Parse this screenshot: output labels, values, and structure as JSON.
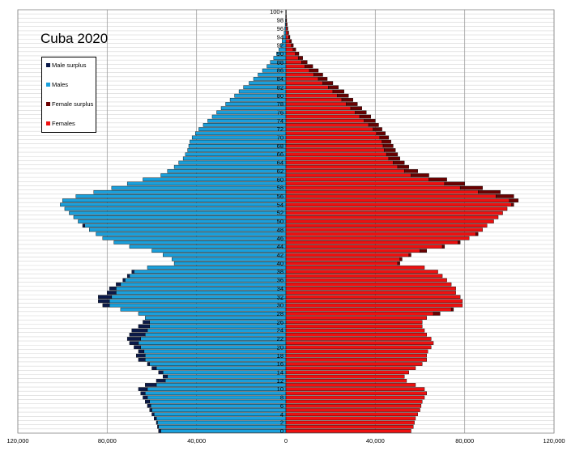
{
  "chart_data": {
    "type": "bar",
    "title": "Cuba 2020",
    "orientation": "horizontal",
    "layout": "population-pyramid",
    "xlim": [
      -120000,
      120000
    ],
    "x_ticks": [
      -120000,
      -80000,
      -40000,
      0,
      40000,
      80000,
      120000
    ],
    "x_tick_labels": [
      "120,000",
      "80,000",
      "40,000",
      "0",
      "40,000",
      "80,000",
      "120,000"
    ],
    "age_labels": [
      "0",
      "2",
      "4",
      "6",
      "8",
      "10",
      "12",
      "14",
      "16",
      "18",
      "20",
      "22",
      "24",
      "26",
      "28",
      "30",
      "32",
      "34",
      "36",
      "38",
      "40",
      "42",
      "44",
      "46",
      "48",
      "50",
      "52",
      "54",
      "56",
      "58",
      "60",
      "62",
      "64",
      "66",
      "68",
      "70",
      "72",
      "74",
      "76",
      "78",
      "80",
      "82",
      "84",
      "86",
      "88",
      "90",
      "92",
      "94",
      "96",
      "98",
      "100+"
    ],
    "grid": true,
    "legend_position": "upper-left",
    "legend": [
      {
        "label": "Male surplus",
        "color": "#0b1a4a"
      },
      {
        "label": "Males",
        "color": "#1aa0dc"
      },
      {
        "label": "Female surplus",
        "color": "#6b0000"
      },
      {
        "label": "Females",
        "color": "#ee1010"
      }
    ],
    "ages": [
      0,
      1,
      2,
      3,
      4,
      5,
      6,
      7,
      8,
      9,
      10,
      11,
      12,
      13,
      14,
      15,
      16,
      17,
      18,
      19,
      20,
      21,
      22,
      23,
      24,
      25,
      26,
      27,
      28,
      29,
      30,
      31,
      32,
      33,
      34,
      35,
      36,
      37,
      38,
      39,
      40,
      41,
      42,
      43,
      44,
      45,
      46,
      47,
      48,
      49,
      50,
      51,
      52,
      53,
      54,
      55,
      56,
      57,
      58,
      59,
      60,
      61,
      62,
      63,
      64,
      65,
      66,
      67,
      68,
      69,
      70,
      71,
      72,
      73,
      74,
      75,
      76,
      77,
      78,
      79,
      80,
      81,
      82,
      83,
      84,
      85,
      86,
      87,
      88,
      89,
      90,
      91,
      92,
      93,
      94,
      95,
      96,
      97,
      98,
      99,
      100
    ],
    "series": [
      {
        "name": "Males",
        "values": [
          57000,
          57500,
          58000,
          59000,
          60000,
          61000,
          62000,
          63000,
          64000,
          65000,
          66000,
          63000,
          58000,
          55000,
          57000,
          60000,
          62000,
          66000,
          67000,
          66000,
          68000,
          70000,
          71000,
          70000,
          69000,
          66000,
          64000,
          63000,
          66000,
          74000,
          82000,
          84000,
          84000,
          80000,
          79000,
          76000,
          73000,
          71000,
          69000,
          62000,
          50000,
          51000,
          55000,
          60000,
          70000,
          77000,
          82000,
          85000,
          88000,
          91000,
          93000,
          95000,
          97000,
          99000,
          101000,
          100000,
          94000,
          86000,
          78000,
          71000,
          64000,
          56000,
          53000,
          50000,
          48000,
          46000,
          45000,
          44000,
          43500,
          43000,
          42000,
          40500,
          39000,
          37000,
          35000,
          33000,
          31000,
          29000,
          27000,
          25000,
          23000,
          21000,
          19000,
          16500,
          14500,
          12500,
          10500,
          8500,
          7000,
          5500,
          4200,
          3200,
          2400,
          1700,
          1200,
          800,
          550,
          350,
          220,
          130,
          100
        ]
      },
      {
        "name": "Females",
        "values": [
          56000,
          57000,
          57500,
          58000,
          59000,
          60000,
          60500,
          61000,
          62000,
          63000,
          62000,
          58000,
          54000,
          53000,
          55000,
          58000,
          61000,
          63000,
          63000,
          63500,
          65000,
          66000,
          65000,
          63000,
          62000,
          61000,
          61000,
          63000,
          69000,
          75000,
          79000,
          79000,
          78000,
          76000,
          76000,
          74000,
          72000,
          70000,
          68000,
          62000,
          51000,
          52000,
          56000,
          63000,
          71000,
          78000,
          82000,
          86000,
          88000,
          90000,
          93000,
          95000,
          97000,
          99000,
          102000,
          104000,
          102000,
          96000,
          88000,
          80000,
          72000,
          64000,
          59000,
          55000,
          53000,
          51000,
          50000,
          49000,
          48000,
          47000,
          46000,
          44500,
          43000,
          41500,
          40000,
          38000,
          36000,
          34000,
          32000,
          30000,
          28000,
          26000,
          23500,
          21000,
          18500,
          16500,
          14500,
          12000,
          9500,
          7500,
          5800,
          4400,
          3300,
          2500,
          1800,
          1250,
          850,
          550,
          350,
          200,
          160
        ]
      }
    ]
  }
}
